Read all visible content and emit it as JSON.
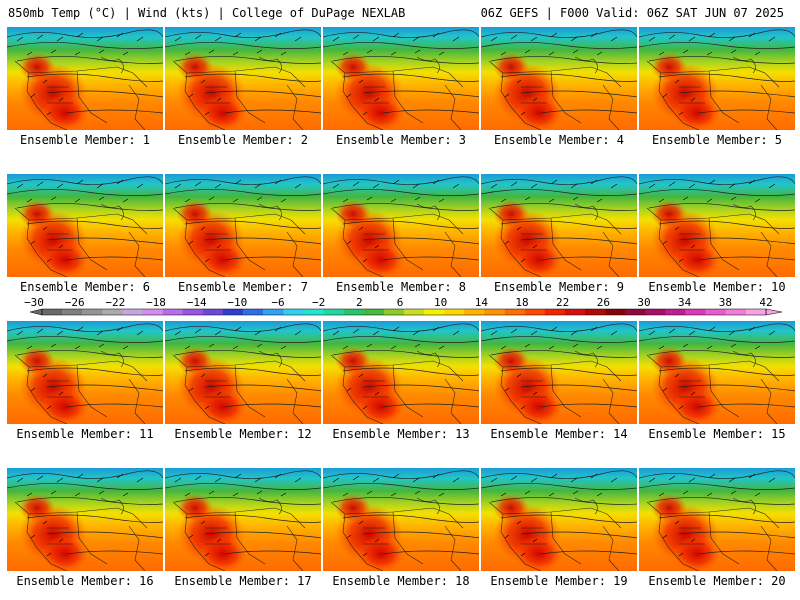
{
  "header": {
    "left": "850mb Temp (°C) | Wind (kts) | College of DuPage NEXLAB",
    "right": "06Z GEFS | F000 Valid: 06Z SAT JUN 07 2025"
  },
  "members": [
    "Ensemble Member: 1",
    "Ensemble Member: 2",
    "Ensemble Member: 3",
    "Ensemble Member: 4",
    "Ensemble Member: 5",
    "Ensemble Member: 6",
    "Ensemble Member: 7",
    "Ensemble Member: 8",
    "Ensemble Member: 9",
    "Ensemble Member: 10",
    "Ensemble Member: 11",
    "Ensemble Member: 12",
    "Ensemble Member: 13",
    "Ensemble Member: 14",
    "Ensemble Member: 15",
    "Ensemble Member: 16",
    "Ensemble Member: 17",
    "Ensemble Member: 18",
    "Ensemble Member: 19",
    "Ensemble Member: 20"
  ],
  "colorbar": {
    "labels": [
      "−30",
      "−26",
      "−22",
      "−18",
      "−14",
      "−10",
      "−6",
      "−2",
      "2",
      "6",
      "10",
      "14",
      "18",
      "22",
      "26",
      "30",
      "34",
      "38",
      "42"
    ],
    "colors": [
      "#6a6a6a",
      "#7f7f7f",
      "#959595",
      "#aaaaaa",
      "#c5a7e0",
      "#d38df0",
      "#b86ee8",
      "#9b55df",
      "#6a4ad8",
      "#2e3fd0",
      "#2f6ee6",
      "#2fa1f0",
      "#2fd0f2",
      "#22e6d2",
      "#22d8a0",
      "#2ac46a",
      "#46b83a",
      "#8ccc28",
      "#c8df22",
      "#f4f000",
      "#ffd600",
      "#ffb400",
      "#ff9200",
      "#ff6e00",
      "#ff4a00",
      "#f02400",
      "#d41010",
      "#b00808",
      "#8a0008",
      "#8e0a3a",
      "#a8106a",
      "#c21c95",
      "#d83ab8",
      "#e65ccc",
      "#f07ed8",
      "#f6a2e2"
    ]
  }
}
